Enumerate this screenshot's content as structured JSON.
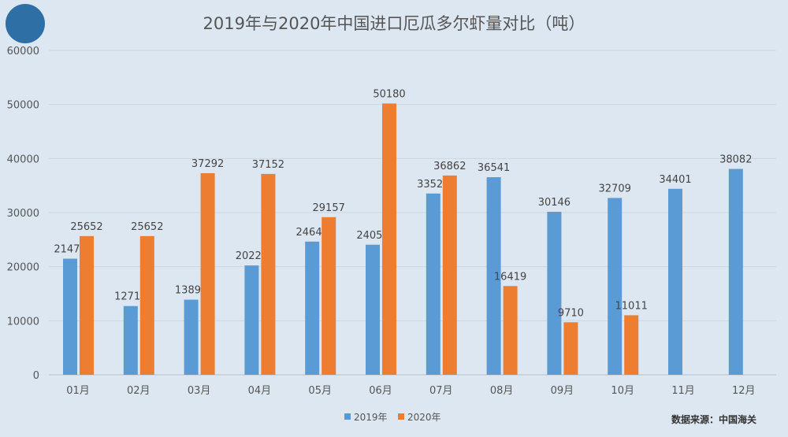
{
  "chart_data": {
    "type": "bar",
    "title": "2019年与2020年中国进口厄瓜多尔虾量对比（吨）",
    "categories": [
      "01月",
      "02月",
      "03月",
      "04月",
      "05月",
      "06月",
      "07月",
      "08月",
      "09月",
      "10月",
      "11月",
      "12月"
    ],
    "series": [
      {
        "name": "2019年",
        "color": "#5b9bd5",
        "values": [
          21479,
          12713,
          13895,
          20226,
          24640,
          24059,
          33528,
          36541,
          30146,
          32709,
          34401,
          38082
        ]
      },
      {
        "name": "2020年",
        "color": "#ed7d31",
        "values": [
          25652,
          25652,
          37292,
          37152,
          29157,
          50180,
          36862,
          16419,
          9710,
          11011,
          null,
          null
        ]
      }
    ],
    "ylim": [
      0,
      60000
    ],
    "yticks": [
      0,
      10000,
      20000,
      30000,
      40000,
      50000,
      60000
    ],
    "grid": true,
    "legend": "bottom",
    "source": "数据来源：中国海关"
  }
}
